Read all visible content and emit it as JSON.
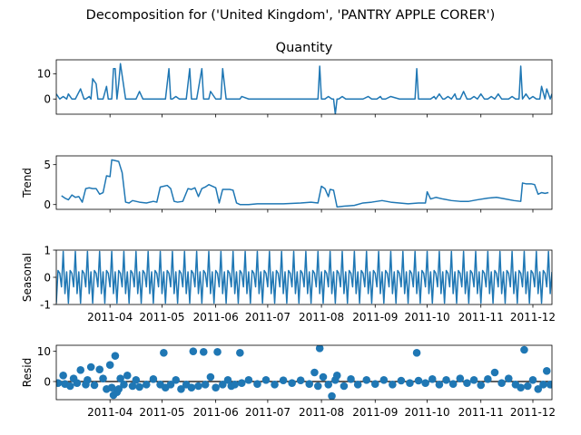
{
  "suptitle": "Decomposition for ('United Kingdom', 'PANTRY APPLE CORER')",
  "colors": {
    "line": "#1f77b4",
    "frame": "#000000",
    "zero_line": "#000000"
  },
  "chart_data": [
    {
      "name": "observed",
      "type": "line",
      "title": "Quantity",
      "ylabel": "",
      "x_range": [
        "2011-03-01",
        "2011-12-12"
      ],
      "ylim": [
        -6.0,
        15.5
      ],
      "yticks": [
        0,
        10
      ],
      "xtick_labels": [
        "2011-04",
        "2011-05",
        "2011-06",
        "2011-07",
        "2011-08",
        "2011-09",
        "2011-10",
        "2011-11",
        "2011-12"
      ],
      "xtick_dates": [
        "2011-04-01",
        "2011-05-01",
        "2011-06-01",
        "2011-07-01",
        "2011-08-01",
        "2011-09-01",
        "2011-10-01",
        "2011-11-01",
        "2011-12-01"
      ],
      "show_xtick_labels": false,
      "x": [
        "2011-03-01",
        "2011-03-03",
        "2011-03-05",
        "2011-03-07",
        "2011-03-08",
        "2011-03-10",
        "2011-03-11",
        "2011-03-12",
        "2011-03-15",
        "2011-03-17",
        "2011-03-18",
        "2011-03-20",
        "2011-03-21",
        "2011-03-22",
        "2011-03-24",
        "2011-03-25",
        "2011-03-26",
        "2011-03-28",
        "2011-03-30",
        "2011-03-31",
        "2011-04-01",
        "2011-04-02",
        "2011-04-03",
        "2011-04-04",
        "2011-04-05",
        "2011-04-06",
        "2011-04-07",
        "2011-04-10",
        "2011-04-14",
        "2011-04-15",
        "2011-04-16",
        "2011-04-18",
        "2011-04-20",
        "2011-04-24",
        "2011-04-28",
        "2011-05-01",
        "2011-05-03",
        "2011-05-05",
        "2011-05-06",
        "2011-05-07",
        "2011-05-09",
        "2011-05-11",
        "2011-05-15",
        "2011-05-17",
        "2011-05-18",
        "2011-05-19",
        "2011-05-21",
        "2011-05-24",
        "2011-05-25",
        "2011-05-26",
        "2011-05-28",
        "2011-05-29",
        "2011-06-01",
        "2011-06-03",
        "2011-06-04",
        "2011-06-05",
        "2011-06-07",
        "2011-06-09",
        "2011-06-15",
        "2011-06-16",
        "2011-06-20",
        "2011-07-01",
        "2011-07-05",
        "2011-07-15",
        "2011-07-20",
        "2011-07-25",
        "2011-07-28",
        "2011-07-30",
        "2011-07-31",
        "2011-08-01",
        "2011-08-03",
        "2011-08-05",
        "2011-08-07",
        "2011-08-08",
        "2011-08-09",
        "2011-08-10",
        "2011-08-11",
        "2011-08-13",
        "2011-08-15",
        "2011-08-20",
        "2011-08-25",
        "2011-08-28",
        "2011-08-30",
        "2011-09-01",
        "2011-09-02",
        "2011-09-04",
        "2011-09-05",
        "2011-09-07",
        "2011-09-10",
        "2011-09-15",
        "2011-09-20",
        "2011-09-24",
        "2011-09-25",
        "2011-09-26",
        "2011-09-28",
        "2011-10-01",
        "2011-10-03",
        "2011-10-05",
        "2011-10-06",
        "2011-10-08",
        "2011-10-10",
        "2011-10-11",
        "2011-10-13",
        "2011-10-15",
        "2011-10-17",
        "2011-10-18",
        "2011-10-20",
        "2011-10-22",
        "2011-10-24",
        "2011-10-26",
        "2011-10-28",
        "2011-10-30",
        "2011-11-01",
        "2011-11-03",
        "2011-11-05",
        "2011-11-07",
        "2011-11-09",
        "2011-11-11",
        "2011-11-13",
        "2011-11-15",
        "2011-11-17",
        "2011-11-19",
        "2011-11-21",
        "2011-11-23",
        "2011-11-24",
        "2011-11-25",
        "2011-11-27",
        "2011-11-29",
        "2011-12-01",
        "2011-12-03",
        "2011-12-05",
        "2011-12-06",
        "2011-12-08",
        "2011-12-09",
        "2011-12-11",
        "2011-12-12"
      ],
      "y": [
        2,
        0,
        1,
        0,
        2,
        0,
        0,
        0,
        4,
        0,
        0,
        1,
        0,
        8,
        6,
        0,
        0,
        0,
        5,
        0,
        0,
        0,
        12,
        12,
        0,
        6,
        14,
        0,
        0,
        0,
        0,
        3,
        0,
        0,
        0,
        0,
        0,
        12,
        0,
        0,
        1,
        0,
        0,
        12,
        0,
        0,
        0,
        12,
        0,
        0,
        0,
        3,
        0,
        0,
        0,
        12,
        0,
        0,
        0,
        1,
        0,
        0,
        0,
        0,
        0,
        0,
        0,
        0,
        13,
        0,
        0,
        1,
        0,
        0,
        -6,
        0,
        0,
        1,
        0,
        0,
        0,
        1,
        0,
        0,
        0,
        1,
        0,
        0,
        1,
        0,
        0,
        0,
        12,
        0,
        0,
        0,
        0,
        1,
        0,
        2,
        0,
        0,
        1,
        0,
        2,
        0,
        0,
        3,
        0,
        0,
        1,
        0,
        2,
        0,
        0,
        1,
        0,
        2,
        0,
        0,
        0,
        1,
        0,
        0,
        13,
        0,
        2,
        0,
        1,
        0,
        0,
        5,
        0,
        4,
        0,
        2
      ]
    },
    {
      "name": "trend",
      "type": "line",
      "title": "",
      "ylabel": "Trend",
      "x_range": [
        "2011-03-01",
        "2011-12-12"
      ],
      "ylim": [
        -0.6,
        6.1
      ],
      "yticks": [
        0,
        5
      ],
      "xtick_labels": [
        "2011-04",
        "2011-05",
        "2011-06",
        "2011-07",
        "2011-08",
        "2011-09",
        "2011-10",
        "2011-11",
        "2011-12"
      ],
      "xtick_dates": [
        "2011-04-01",
        "2011-05-01",
        "2011-06-01",
        "2011-07-01",
        "2011-08-01",
        "2011-09-01",
        "2011-10-01",
        "2011-11-01",
        "2011-12-01"
      ],
      "show_xtick_labels": false,
      "x": [
        "2011-03-04",
        "2011-03-06",
        "2011-03-08",
        "2011-03-10",
        "2011-03-12",
        "2011-03-14",
        "2011-03-16",
        "2011-03-18",
        "2011-03-20",
        "2011-03-22",
        "2011-03-24",
        "2011-03-26",
        "2011-03-28",
        "2011-03-30",
        "2011-04-01",
        "2011-04-02",
        "2011-04-04",
        "2011-04-06",
        "2011-04-08",
        "2011-04-10",
        "2011-04-12",
        "2011-04-14",
        "2011-04-18",
        "2011-04-22",
        "2011-04-26",
        "2011-04-28",
        "2011-04-30",
        "2011-05-02",
        "2011-05-04",
        "2011-05-06",
        "2011-05-08",
        "2011-05-10",
        "2011-05-13",
        "2011-05-16",
        "2011-05-18",
        "2011-05-20",
        "2011-05-22",
        "2011-05-24",
        "2011-05-26",
        "2011-05-28",
        "2011-05-30",
        "2011-06-01",
        "2011-06-03",
        "2011-06-05",
        "2011-06-07",
        "2011-06-09",
        "2011-06-11",
        "2011-06-13",
        "2011-06-15",
        "2011-06-17",
        "2011-06-20",
        "2011-06-25",
        "2011-07-01",
        "2011-07-10",
        "2011-07-20",
        "2011-07-26",
        "2011-07-30",
        "2011-08-01",
        "2011-08-03",
        "2011-08-05",
        "2011-08-06",
        "2011-08-08",
        "2011-08-10",
        "2011-08-14",
        "2011-08-20",
        "2011-08-25",
        "2011-08-30",
        "2011-09-05",
        "2011-09-10",
        "2011-09-15",
        "2011-09-20",
        "2011-09-26",
        "2011-09-30",
        "2011-10-01",
        "2011-10-03",
        "2011-10-06",
        "2011-10-10",
        "2011-10-15",
        "2011-10-20",
        "2011-10-25",
        "2011-10-30",
        "2011-11-05",
        "2011-11-10",
        "2011-11-15",
        "2011-11-20",
        "2011-11-24",
        "2011-11-25",
        "2011-11-27",
        "2011-11-30",
        "2011-12-02",
        "2011-12-04",
        "2011-12-06",
        "2011-12-08",
        "2011-12-10"
      ],
      "y": [
        1.1,
        0.8,
        0.6,
        1.2,
        0.9,
        1.0,
        0.3,
        2.0,
        2.1,
        2.0,
        2.0,
        1.3,
        1.5,
        3.6,
        3.5,
        5.6,
        5.5,
        5.4,
        4.0,
        0.3,
        0.2,
        0.5,
        0.3,
        0.2,
        0.4,
        0.3,
        2.2,
        2.3,
        2.4,
        2.0,
        0.4,
        0.3,
        0.4,
        2.0,
        1.9,
        2.1,
        1.0,
        2.0,
        2.2,
        2.5,
        2.3,
        2.1,
        0.2,
        1.9,
        1.9,
        1.9,
        1.8,
        0.2,
        0.0,
        0.0,
        0.0,
        0.1,
        0.1,
        0.1,
        0.2,
        0.3,
        0.2,
        2.3,
        2.0,
        1.0,
        1.9,
        1.8,
        -0.3,
        -0.2,
        -0.1,
        0.2,
        0.3,
        0.5,
        0.3,
        0.2,
        0.1,
        0.2,
        0.2,
        1.6,
        0.7,
        0.9,
        0.7,
        0.5,
        0.4,
        0.4,
        0.6,
        0.8,
        0.9,
        0.7,
        0.5,
        0.4,
        2.7,
        2.6,
        2.6,
        2.5,
        1.3,
        1.5,
        1.4,
        1.5
      ]
    },
    {
      "name": "seasonal",
      "type": "line",
      "title": "",
      "ylabel": "Seasonal",
      "x_range": [
        "2011-03-01",
        "2011-12-12"
      ],
      "ylim": [
        -1,
        1
      ],
      "yticks": [
        -1,
        0,
        1
      ],
      "xtick_labels": [
        "2011-04",
        "2011-05",
        "2011-06",
        "2011-07",
        "2011-08",
        "2011-09",
        "2011-10",
        "2011-11",
        "2011-12"
      ],
      "xtick_dates": [
        "2011-04-01",
        "2011-05-01",
        "2011-06-01",
        "2011-07-01",
        "2011-08-01",
        "2011-09-01",
        "2011-10-01",
        "2011-11-01",
        "2011-12-01"
      ],
      "show_xtick_labels": true,
      "start": "2011-03-01",
      "end": "2011-12-12",
      "period_days": 7,
      "pattern": [
        -0.95,
        0.25,
        0.15,
        -0.35,
        0.95,
        -0.6,
        0.2
      ]
    },
    {
      "name": "resid",
      "type": "scatter",
      "title": "",
      "ylabel": "Resid",
      "x_range": [
        "2011-03-01",
        "2011-12-12"
      ],
      "ylim": [
        -6.0,
        12.0
      ],
      "yticks": [
        0,
        10
      ],
      "xtick_labels": [
        "2011-04",
        "2011-05",
        "2011-06",
        "2011-07",
        "2011-08",
        "2011-09",
        "2011-10",
        "2011-11",
        "2011-12"
      ],
      "xtick_dates": [
        "2011-04-01",
        "2011-05-01",
        "2011-06-01",
        "2011-07-01",
        "2011-08-01",
        "2011-09-01",
        "2011-10-01",
        "2011-11-01",
        "2011-12-01"
      ],
      "show_xtick_labels": true,
      "zero_line": true,
      "x": [
        "2011-03-02",
        "2011-03-05",
        "2011-03-06",
        "2011-03-09",
        "2011-03-11",
        "2011-03-13",
        "2011-03-15",
        "2011-03-18",
        "2011-03-19",
        "2011-03-21",
        "2011-03-23",
        "2011-03-26",
        "2011-03-28",
        "2011-03-30",
        "2011-04-01",
        "2011-04-02",
        "2011-04-03",
        "2011-04-04",
        "2011-04-05",
        "2011-04-06",
        "2011-04-07",
        "2011-04-09",
        "2011-04-11",
        "2011-04-14",
        "2011-04-16",
        "2011-04-18",
        "2011-04-22",
        "2011-04-26",
        "2011-04-30",
        "2011-05-02",
        "2011-05-03",
        "2011-05-06",
        "2011-05-09",
        "2011-05-12",
        "2011-05-15",
        "2011-05-18",
        "2011-05-19",
        "2011-05-22",
        "2011-05-25",
        "2011-05-26",
        "2011-05-29",
        "2011-06-01",
        "2011-06-02",
        "2011-06-05",
        "2011-06-08",
        "2011-06-10",
        "2011-06-12",
        "2011-06-15",
        "2011-06-16",
        "2011-06-20",
        "2011-06-25",
        "2011-06-30",
        "2011-07-05",
        "2011-07-10",
        "2011-07-15",
        "2011-07-20",
        "2011-07-25",
        "2011-07-28",
        "2011-07-30",
        "2011-07-31",
        "2011-08-02",
        "2011-08-05",
        "2011-08-07",
        "2011-08-09",
        "2011-08-10",
        "2011-08-14",
        "2011-08-18",
        "2011-08-22",
        "2011-08-27",
        "2011-09-01",
        "2011-09-06",
        "2011-09-11",
        "2011-09-16",
        "2011-09-21",
        "2011-09-25",
        "2011-09-26",
        "2011-09-30",
        "2011-10-04",
        "2011-10-08",
        "2011-10-12",
        "2011-10-16",
        "2011-10-20",
        "2011-10-24",
        "2011-10-28",
        "2011-11-01",
        "2011-11-05",
        "2011-11-09",
        "2011-11-13",
        "2011-11-17",
        "2011-11-21",
        "2011-11-24",
        "2011-11-26",
        "2011-11-28",
        "2011-12-01",
        "2011-12-04",
        "2011-12-07",
        "2011-12-09",
        "2011-12-11"
      ],
      "y": [
        -0.5,
        2.0,
        -0.8,
        -1.5,
        1.0,
        -0.5,
        3.8,
        -1.0,
        0.5,
        4.8,
        -1.2,
        4.0,
        1.0,
        -2.5,
        5.5,
        -2.0,
        -4.5,
        8.5,
        -3.5,
        -2.5,
        1.0,
        -1.0,
        2.0,
        -1.5,
        0.5,
        -1.8,
        -1.0,
        0.8,
        -1.0,
        9.5,
        -2.0,
        -1.0,
        0.5,
        -2.5,
        -1.0,
        -2.0,
        10.0,
        -1.5,
        9.8,
        -1.0,
        1.5,
        -2.0,
        9.8,
        -1.0,
        0.5,
        -1.5,
        -1.0,
        9.5,
        -0.5,
        0.5,
        -0.8,
        0.5,
        -1.0,
        0.4,
        -0.5,
        0.4,
        -0.8,
        3.0,
        -1.5,
        11.0,
        1.5,
        -1.0,
        -4.8,
        0.5,
        2.0,
        -1.5,
        0.8,
        -1.0,
        0.5,
        -0.8,
        0.5,
        -1.0,
        0.3,
        -0.5,
        9.5,
        0.3,
        -0.5,
        0.8,
        -1.0,
        0.5,
        -0.8,
        1.0,
        -0.5,
        0.5,
        -1.2,
        0.8,
        3.0,
        -0.5,
        1.0,
        -1.0,
        -2.0,
        10.5,
        -1.5,
        0.5,
        -2.5,
        -1.0,
        3.5,
        -1.0
      ]
    }
  ]
}
